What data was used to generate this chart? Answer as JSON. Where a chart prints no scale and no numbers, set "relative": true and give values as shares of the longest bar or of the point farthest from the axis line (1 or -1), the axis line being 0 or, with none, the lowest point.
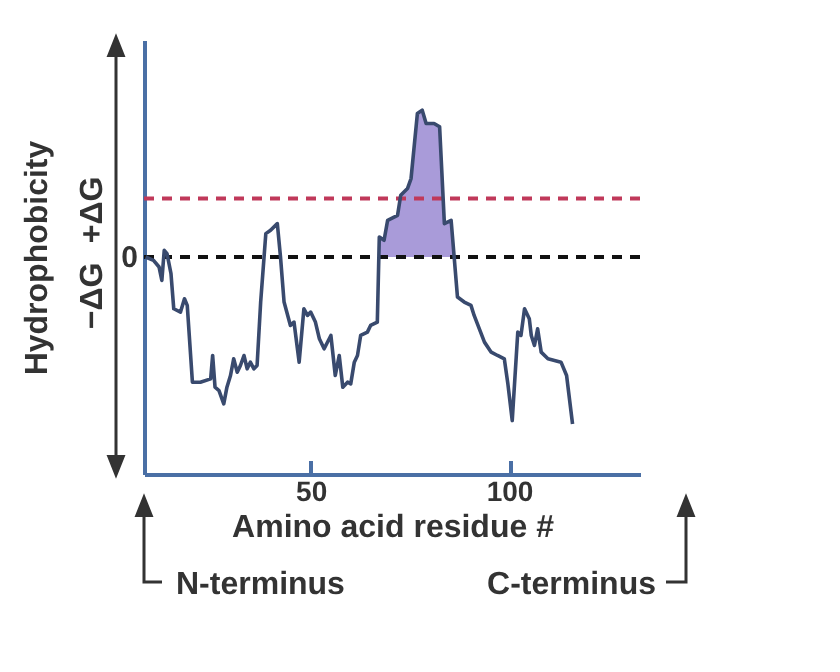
{
  "chart_data": {
    "type": "line",
    "xlabel": "Amino acid residue #",
    "ylabel": "Hydrophobicity",
    "relative": true,
    "xlim": [
      8,
      133
    ],
    "xticks": [
      50,
      100
    ],
    "annotations": [
      "−ΔG",
      "+ΔG",
      "N-terminus",
      "C-terminus"
    ],
    "ref_lines": [
      {
        "axis": "y",
        "value": 0,
        "label": "0",
        "color": "#111111",
        "line_style": "dashed"
      },
      {
        "axis": "y",
        "value": 0.35,
        "color": "#c0395a",
        "line_style": "dashed"
      }
    ],
    "series": [
      {
        "type": "area",
        "color": "#a99bd9",
        "x": [
          67.3,
          68.5,
          69.4,
          71.9,
          72.7,
          74.4,
          75.3,
          76.9,
          78.1,
          79.1,
          81.1,
          82.5,
          83.7,
          85.4,
          86.2
        ],
        "values": [
          0.12,
          0.1,
          0.22,
          0.25,
          0.37,
          0.41,
          0.47,
          0.86,
          0.88,
          0.8,
          0.8,
          0.78,
          0.2,
          0.22,
          0
        ]
      },
      {
        "type": "line",
        "color": "#394a6e",
        "x": [
          8.4,
          10.4,
          11.8,
          12.5,
          13.1,
          13.8,
          14.8,
          15.5,
          17.2,
          18.2,
          18.9,
          20.2,
          22.2,
          24.8,
          25.3,
          25.9,
          26.9,
          28.1,
          28.9,
          29.8,
          30.6,
          31.5,
          32.3,
          33.2,
          34.0,
          34.8,
          35.7,
          36.5,
          37.4,
          38.7,
          39.9,
          41.6,
          42.4,
          43.3,
          44.9,
          45.8,
          47.1,
          48.3,
          49.2,
          50.0,
          51.2,
          52.2,
          53.4,
          55.1,
          56.2,
          57.2,
          58.1,
          59.3,
          60.1,
          61.0,
          61.8,
          62.6,
          64.3,
          65.1,
          66.8,
          67.3,
          68.5,
          69.4,
          71.9,
          72.7,
          74.4,
          75.3,
          76.9,
          78.1,
          79.1,
          81.1,
          82.5,
          83.7,
          85.4,
          87.0,
          88.7,
          90.4,
          91.2,
          93.8,
          95.5,
          97.1,
          98.8,
          99.7,
          100.8,
          102.2,
          103.0,
          103.9,
          105.1,
          105.6,
          106.4,
          107.2,
          108.1,
          109.8,
          113.1,
          114.5,
          116.0
        ],
        "values": [
          0,
          -0.02,
          -0.06,
          -0.14,
          0.04,
          0.02,
          -0.1,
          -0.31,
          -0.33,
          -0.25,
          -0.29,
          -0.75,
          -0.75,
          -0.73,
          -0.59,
          -0.78,
          -0.8,
          -0.88,
          -0.78,
          -0.71,
          -0.61,
          -0.69,
          -0.65,
          -0.59,
          -0.67,
          -0.63,
          -0.67,
          -0.65,
          -0.27,
          0.14,
          0.16,
          0.2,
          0,
          -0.27,
          -0.41,
          -0.39,
          -0.63,
          -0.31,
          -0.35,
          -0.33,
          -0.39,
          -0.49,
          -0.55,
          -0.47,
          -0.71,
          -0.59,
          -0.78,
          -0.75,
          -0.76,
          -0.63,
          -0.59,
          -0.47,
          -0.45,
          -0.41,
          -0.39,
          0.12,
          0.1,
          0.22,
          0.25,
          0.37,
          0.41,
          0.47,
          0.86,
          0.88,
          0.8,
          0.8,
          0.78,
          0.2,
          0.22,
          -0.24,
          -0.27,
          -0.29,
          -0.35,
          -0.51,
          -0.57,
          -0.59,
          -0.61,
          -0.76,
          -0.98,
          -0.45,
          -0.47,
          -0.31,
          -0.37,
          -0.47,
          -0.53,
          -0.43,
          -0.57,
          -0.61,
          -0.63,
          -0.71,
          -1
        ]
      }
    ]
  }
}
